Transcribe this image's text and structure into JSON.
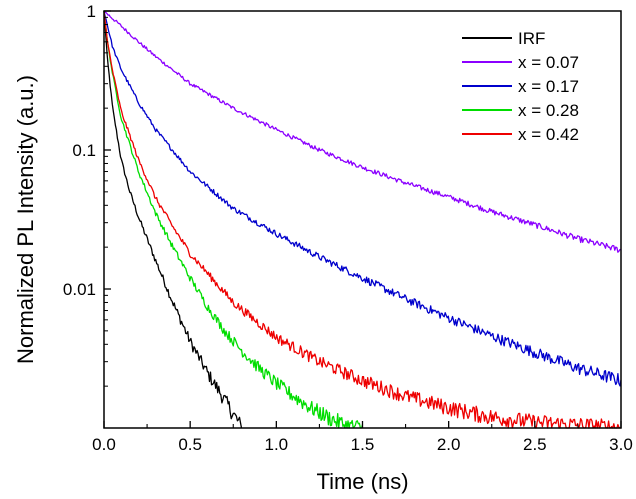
{
  "chart_data": {
    "type": "line",
    "xlabel": "Time (ns)",
    "ylabel": "Normalized PL Intensity (a.u.)",
    "xlim": [
      0,
      3.0
    ],
    "ylim": [
      0.001,
      1
    ],
    "yscale": "log",
    "x_ticks": [
      0.0,
      0.5,
      1.0,
      1.5,
      2.0,
      2.5,
      3.0
    ],
    "x_tick_labels": [
      "0.0",
      "0.5",
      "1.0",
      "1.5",
      "2.0",
      "2.5",
      "3.0"
    ],
    "y_ticks": [
      1,
      0.1,
      0.01
    ],
    "y_tick_labels": [
      "1",
      "0.1",
      "0.01"
    ],
    "grid": false,
    "legend_position": "top-right",
    "series": [
      {
        "name": "IRF",
        "color": "#000000",
        "x": [
          0.0,
          0.02,
          0.05,
          0.1,
          0.15,
          0.2,
          0.3,
          0.4,
          0.5,
          0.6,
          0.7,
          0.8
        ],
        "y": [
          1.0,
          0.45,
          0.2,
          0.085,
          0.05,
          0.033,
          0.016,
          0.008,
          0.0042,
          0.0025,
          0.0016,
          0.001
        ]
      },
      {
        "name": "x = 0.07",
        "color": "#8B00FF",
        "x": [
          0.0,
          0.1,
          0.2,
          0.3,
          0.5,
          0.75,
          1.0,
          1.25,
          1.5,
          1.75,
          2.0,
          2.25,
          2.5,
          2.75,
          3.0
        ],
        "y": [
          1.0,
          0.78,
          0.6,
          0.47,
          0.3,
          0.2,
          0.14,
          0.1,
          0.075,
          0.058,
          0.046,
          0.036,
          0.029,
          0.023,
          0.019
        ]
      },
      {
        "name": "x = 0.17",
        "color": "#0000CC",
        "x": [
          0.0,
          0.05,
          0.1,
          0.2,
          0.3,
          0.5,
          0.75,
          1.0,
          1.25,
          1.5,
          1.75,
          2.0,
          2.25,
          2.5,
          2.75,
          3.0
        ],
        "y": [
          1.0,
          0.55,
          0.38,
          0.22,
          0.14,
          0.07,
          0.038,
          0.025,
          0.017,
          0.012,
          0.0085,
          0.0062,
          0.0046,
          0.0035,
          0.0027,
          0.0022
        ]
      },
      {
        "name": "x = 0.28",
        "color": "#00DD00",
        "x": [
          0.0,
          0.02,
          0.05,
          0.1,
          0.2,
          0.3,
          0.4,
          0.5,
          0.6,
          0.7,
          0.8,
          0.9,
          1.0,
          1.1,
          1.2,
          1.3,
          1.4,
          1.5
        ],
        "y": [
          1.0,
          0.6,
          0.35,
          0.17,
          0.07,
          0.035,
          0.02,
          0.012,
          0.0075,
          0.005,
          0.0036,
          0.0027,
          0.0021,
          0.0017,
          0.0014,
          0.0012,
          0.00105,
          0.001
        ]
      },
      {
        "name": "x = 0.42",
        "color": "#EE0000",
        "x": [
          0.0,
          0.02,
          0.05,
          0.1,
          0.2,
          0.3,
          0.4,
          0.5,
          0.75,
          1.0,
          1.25,
          1.5,
          1.75,
          2.0,
          2.25,
          2.5,
          2.75,
          3.0
        ],
        "y": [
          1.0,
          0.6,
          0.37,
          0.19,
          0.085,
          0.045,
          0.028,
          0.018,
          0.008,
          0.0045,
          0.003,
          0.0022,
          0.0017,
          0.0014,
          0.0012,
          0.0011,
          0.00105,
          0.001
        ]
      }
    ]
  }
}
